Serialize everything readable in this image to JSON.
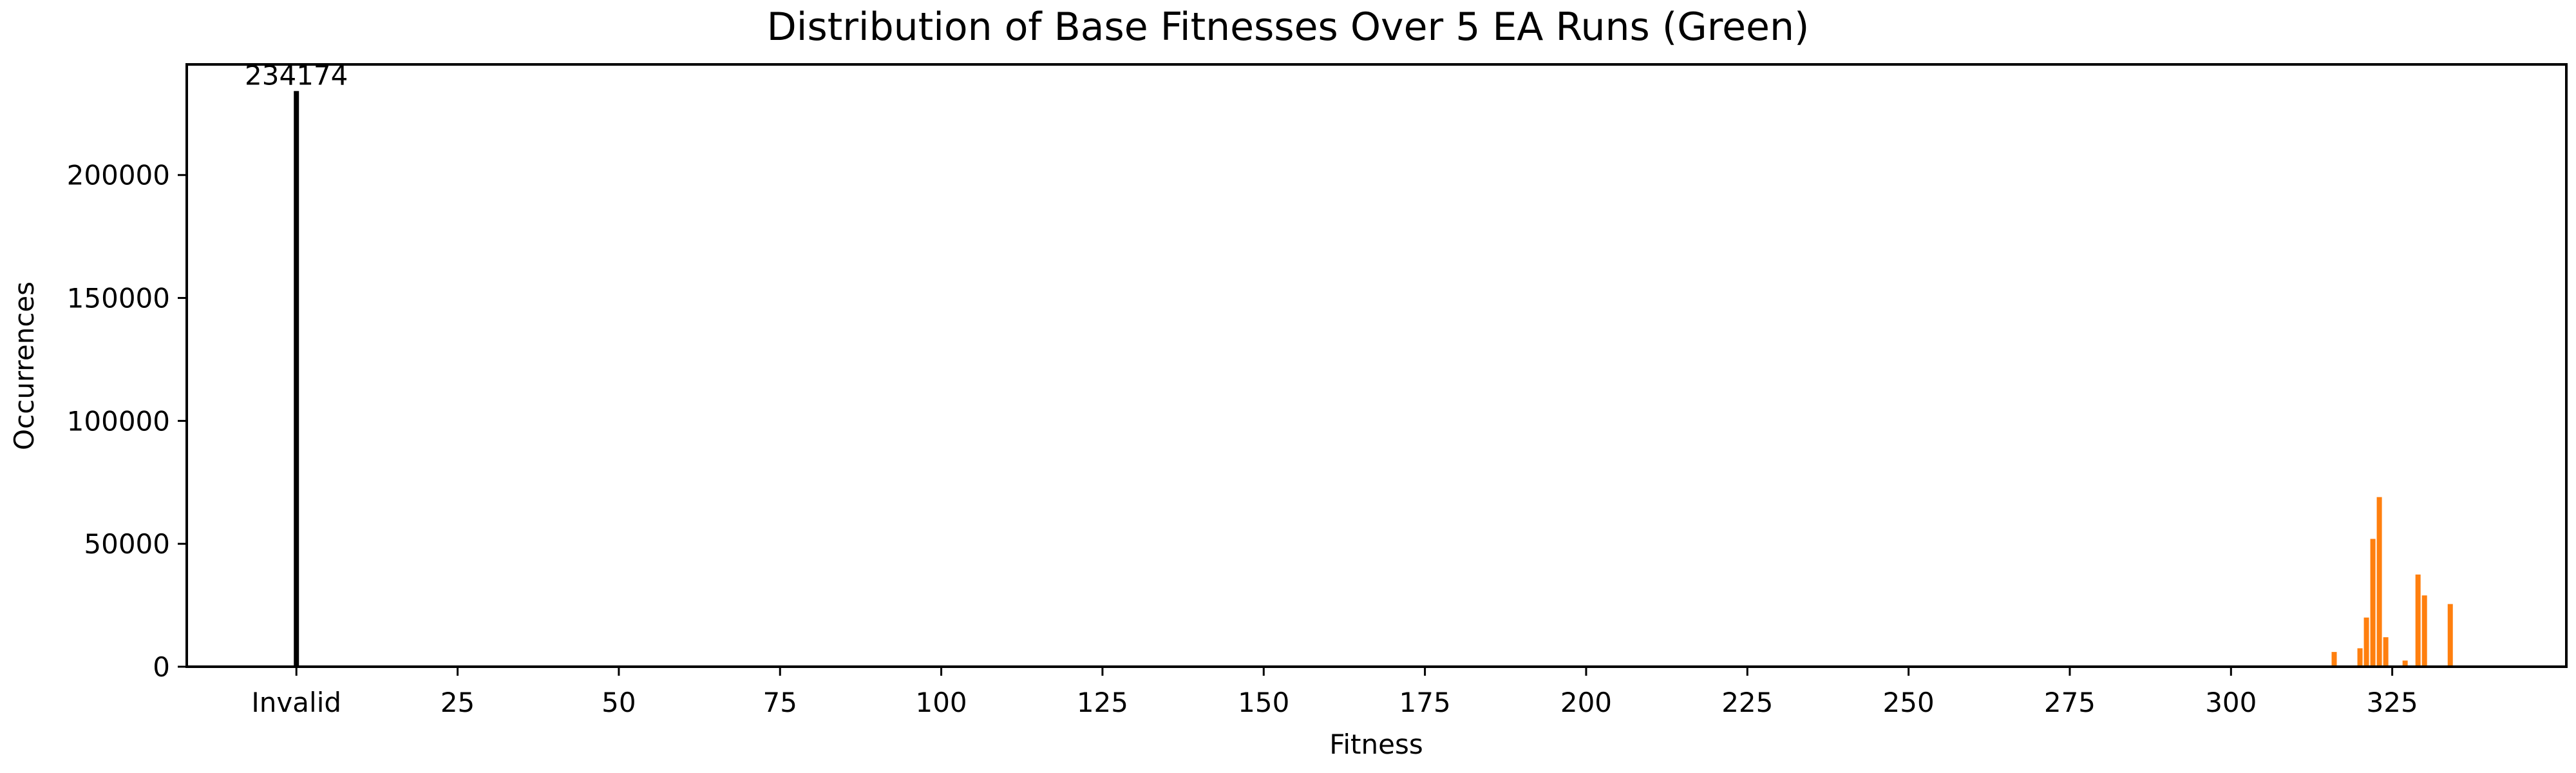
{
  "chart_data": {
    "type": "bar",
    "title": "Distribution of Base Fitnesses Over 5 EA Runs (Green)",
    "xlabel": "Fitness",
    "ylabel": "Occurrences",
    "xlim": [
      -17,
      352
    ],
    "ylim": [
      0,
      245000
    ],
    "grid": false,
    "xticks": [
      {
        "value": 0,
        "label": "Invalid"
      },
      {
        "value": 25,
        "label": "25"
      },
      {
        "value": 50,
        "label": "50"
      },
      {
        "value": 75,
        "label": "75"
      },
      {
        "value": 100,
        "label": "100"
      },
      {
        "value": 125,
        "label": "125"
      },
      {
        "value": 150,
        "label": "150"
      },
      {
        "value": 175,
        "label": "175"
      },
      {
        "value": 200,
        "label": "200"
      },
      {
        "value": 225,
        "label": "225"
      },
      {
        "value": 250,
        "label": "250"
      },
      {
        "value": 275,
        "label": "275"
      },
      {
        "value": 300,
        "label": "300"
      },
      {
        "value": 325,
        "label": "325"
      }
    ],
    "yticks": [
      {
        "value": 0,
        "label": "0"
      },
      {
        "value": 50000,
        "label": "50000"
      },
      {
        "value": 100000,
        "label": "100000"
      },
      {
        "value": 150000,
        "label": "150000"
      },
      {
        "value": 200000,
        "label": "200000"
      }
    ],
    "invalid_bar": {
      "x": 0,
      "value": 234174,
      "label": "234174",
      "color": "#000000"
    },
    "series": [
      {
        "color": "#ff7f0e",
        "points": [
          {
            "x": 316,
            "y": 6000
          },
          {
            "x": 320,
            "y": 7500
          },
          {
            "x": 321,
            "y": 20000
          },
          {
            "x": 322,
            "y": 52000
          },
          {
            "x": 323,
            "y": 69000
          },
          {
            "x": 324,
            "y": 12000
          },
          {
            "x": 327,
            "y": 2500
          },
          {
            "x": 329,
            "y": 37500
          },
          {
            "x": 330,
            "y": 29000
          },
          {
            "x": 334,
            "y": 25500
          }
        ]
      }
    ]
  }
}
